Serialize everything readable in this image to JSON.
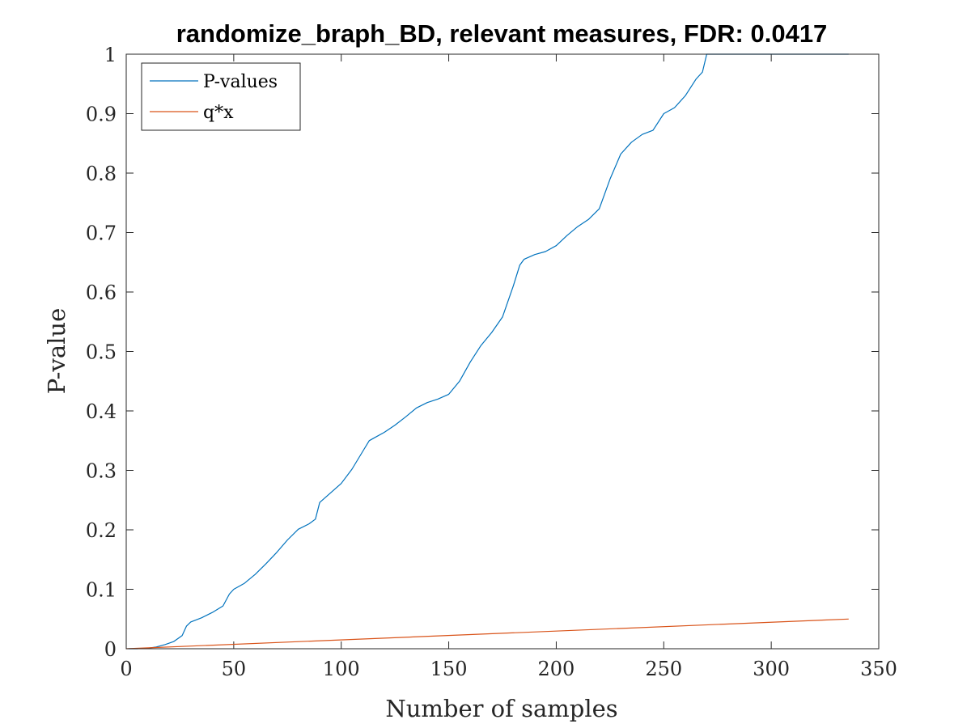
{
  "chart_data": {
    "type": "line",
    "title": "randomize_braph_BD, relevant measures, FDR: 0.0417",
    "xlabel": "Number of samples",
    "ylabel": "P-value",
    "xlim": [
      0,
      350
    ],
    "ylim": [
      0,
      1
    ],
    "xticks": [
      0,
      50,
      100,
      150,
      200,
      250,
      300,
      350
    ],
    "yticks": [
      0,
      0.1,
      0.2,
      0.3,
      0.4,
      0.5,
      0.6,
      0.7,
      0.8,
      0.9,
      1
    ],
    "ytick_labels": [
      "0",
      "0.1",
      "0.2",
      "0.3",
      "0.4",
      "0.5",
      "0.6",
      "0.7",
      "0.8",
      "0.9",
      "1"
    ],
    "grid": false,
    "legend_position": "top-left",
    "series": [
      {
        "name": "P-values",
        "color": "#0072BD",
        "x": [
          1,
          5,
          10,
          14,
          18,
          22,
          26,
          28,
          30,
          35,
          40,
          45,
          48,
          50,
          55,
          60,
          65,
          70,
          75,
          80,
          85,
          88,
          90,
          95,
          100,
          105,
          110,
          113,
          115,
          120,
          125,
          130,
          135,
          140,
          145,
          150,
          155,
          160,
          165,
          170,
          175,
          180,
          183,
          185,
          190,
          195,
          200,
          205,
          210,
          215,
          220,
          225,
          230,
          235,
          240,
          245,
          250,
          255,
          260,
          265,
          268,
          270,
          275,
          280,
          290,
          300,
          310,
          320,
          330,
          336
        ],
        "y": [
          0,
          0,
          0.001,
          0.003,
          0.007,
          0.012,
          0.022,
          0.038,
          0.045,
          0.052,
          0.061,
          0.072,
          0.092,
          0.1,
          0.11,
          0.125,
          0.143,
          0.162,
          0.183,
          0.201,
          0.21,
          0.218,
          0.246,
          0.262,
          0.278,
          0.302,
          0.332,
          0.35,
          0.354,
          0.364,
          0.376,
          0.39,
          0.405,
          0.414,
          0.42,
          0.428,
          0.45,
          0.482,
          0.51,
          0.532,
          0.558,
          0.61,
          0.645,
          0.655,
          0.663,
          0.668,
          0.678,
          0.695,
          0.71,
          0.722,
          0.74,
          0.79,
          0.832,
          0.852,
          0.865,
          0.872,
          0.9,
          0.91,
          0.93,
          0.958,
          0.97,
          1,
          1,
          1,
          1,
          1,
          1,
          1,
          1,
          1
        ]
      },
      {
        "name": "q*x",
        "color": "#D95319",
        "x": [
          0,
          336
        ],
        "y": [
          0,
          0.05
        ]
      }
    ]
  }
}
